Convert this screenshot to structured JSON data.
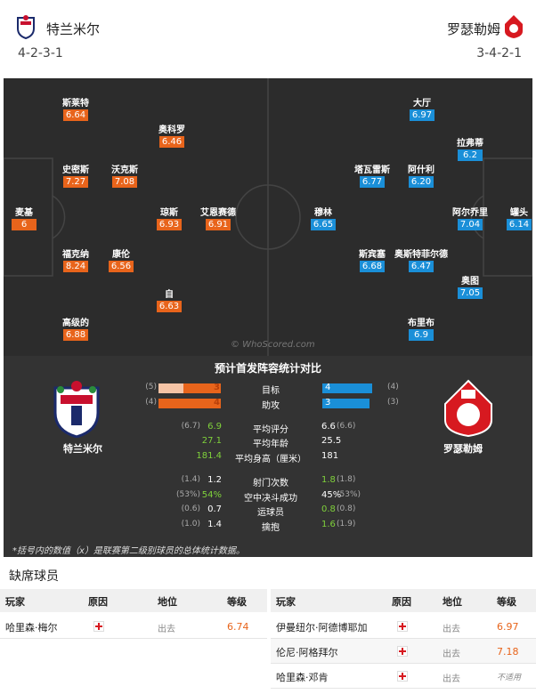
{
  "header": {
    "home": {
      "name": "特兰米尔",
      "formation": "4-2-3-1"
    },
    "away": {
      "name": "罗瑟勒姆",
      "formation": "3-4-2-1"
    }
  },
  "pitch": {
    "watermark": "© WhoScored.com",
    "home_players": [
      {
        "name": "斯莱特",
        "rating": "6.64"
      },
      {
        "name": "奥科罗",
        "rating": "6.46"
      },
      {
        "name": "史密斯",
        "rating": "7.27"
      },
      {
        "name": "沃克斯",
        "rating": "7.08"
      },
      {
        "name": "麦基",
        "rating": "6"
      },
      {
        "name": "琼斯",
        "rating": "6.93"
      },
      {
        "name": "艾恩赛德",
        "rating": "6.91"
      },
      {
        "name": "福克纳",
        "rating": "8.24"
      },
      {
        "name": "康伦",
        "rating": "6.56"
      },
      {
        "name": "自",
        "rating": "6.63"
      },
      {
        "name": "高级的",
        "rating": "6.88"
      }
    ],
    "away_players": [
      {
        "name": "大厅",
        "rating": "6.97"
      },
      {
        "name": "拉弗蒂",
        "rating": "6.2"
      },
      {
        "name": "塔瓦雷斯",
        "rating": "6.77"
      },
      {
        "name": "阿什利",
        "rating": "6.20"
      },
      {
        "name": "穆林",
        "rating": "6.65"
      },
      {
        "name": "阿尔乔里",
        "rating": "7.04"
      },
      {
        "name": "罐头",
        "rating": "6.14"
      },
      {
        "name": "斯宾塞",
        "rating": "6.68"
      },
      {
        "name": "奥斯特菲尔德",
        "rating": "6.47"
      },
      {
        "name": "奥图",
        "rating": "7.05"
      },
      {
        "name": "布里布",
        "rating": "6.9"
      }
    ]
  },
  "comparison": {
    "title": "预计首发阵容统计对比",
    "home_name": "特兰米尔",
    "away_name": "罗瑟勒姆",
    "bars": [
      {
        "label": "目标",
        "home": 3,
        "home_ref": {
          "value": 5,
          "label": "(5)"
        },
        "away": 4,
        "away_ref": {
          "value": 4,
          "label": "(4)"
        }
      },
      {
        "label": "助攻",
        "home": 4,
        "home_ref": {
          "value": 4,
          "label": "(4)"
        },
        "away": 3,
        "away_ref": {
          "value": 3,
          "label": "(3)"
        }
      }
    ],
    "rows": [
      {
        "label": "平均评分",
        "home": "6.9",
        "home_ref": "(6.7)",
        "away": "6.6",
        "away_ref": "(6.6)",
        "better": "home"
      },
      {
        "label": "平均年龄",
        "home": "27.1",
        "away": "25.5",
        "better": "home"
      },
      {
        "label": "平均身高（厘米）",
        "home": "181.4",
        "away": "181",
        "better": "home"
      },
      {
        "label": "射门次数",
        "home": "1.2",
        "home_ref": "(1.4)",
        "away": "1.8",
        "away_ref": "(1.8)",
        "better": "away"
      },
      {
        "label": "空中决斗成功",
        "home": "54%",
        "home_ref": "(53%)",
        "away": "45%",
        "away_ref": "(53%)",
        "better": "home"
      },
      {
        "label": "运球员",
        "home": "0.7",
        "home_ref": "(0.6)",
        "away": "0.8",
        "away_ref": "(0.8)",
        "better": "away"
      },
      {
        "label": "擒抱",
        "home": "1.4",
        "home_ref": "(1.0)",
        "away": "1.6",
        "away_ref": "(1.9)",
        "better": "away"
      }
    ],
    "footnote": "*括号内的数值（x）是联赛第二级别球员的总体统计数据。"
  },
  "missing": {
    "title": "缺席球员",
    "columns": [
      "玩家",
      "原因",
      "地位",
      "等级"
    ],
    "home": [
      {
        "player": "哈里森·梅尔",
        "status": "出去",
        "rating": "6.74"
      }
    ],
    "away": [
      {
        "player": "伊曼纽尔·阿德博耶加",
        "status": "出去",
        "rating": "6.97"
      },
      {
        "player": "伦尼·阿格拜尔",
        "status": "出去",
        "rating": "7.18"
      },
      {
        "player": "哈里森·邓肯",
        "status": "出去",
        "rating": "不适用"
      }
    ]
  }
}
